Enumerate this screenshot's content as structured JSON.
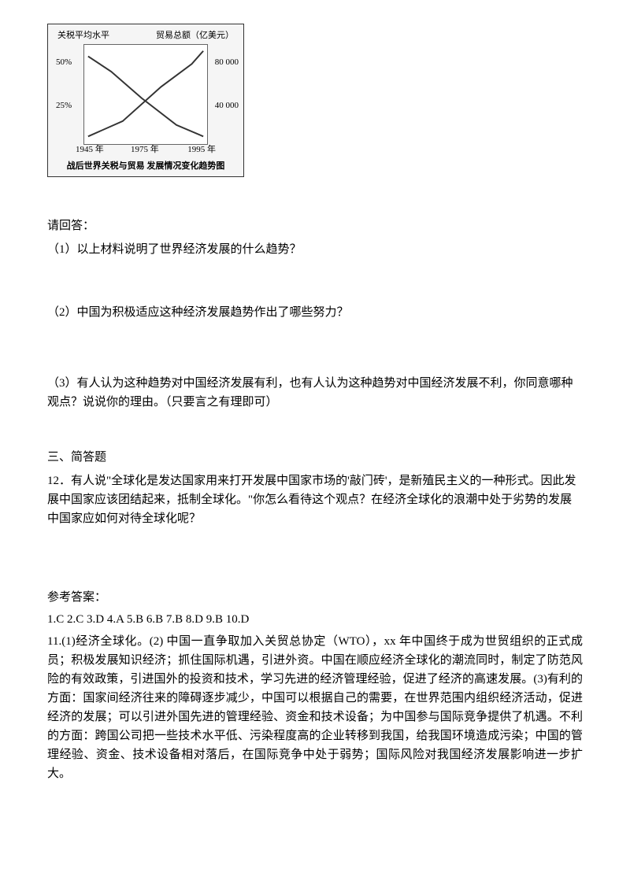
{
  "chart": {
    "left_axis_label": "关税平均水平",
    "right_axis_label": "贸易总额（亿美元）",
    "left_ticks": [
      "50%",
      "25%"
    ],
    "right_ticks": [
      "80 000",
      "40 000"
    ],
    "x_ticks": [
      "1945 年",
      "1975 年",
      "1995 年"
    ],
    "caption": "战后世界关税与贸易 发展情况变化趋势图",
    "line1_points": "5,15 35,35 75,70 120,105 155,120",
    "line2_points": "5,120 50,100 100,55 140,25 155,8",
    "line_color": "#333333",
    "line_width": 2
  },
  "q_intro": "请回答：",
  "q1": "（1）以上材料说明了世界经济发展的什么趋势？",
  "q2": "（2）中国为积极适应这种经济发展趋势作出了哪些努力？",
  "q3": "（3）有人认为这种趋势对中国经济发展有利，也有人认为这种趋势对中国经济发展不利，你同意哪种观点？说说你的理由。（只要言之有理即可）",
  "section3_title": "三、简答题",
  "q12": "12．有人说\"全球化是发达国家用来打开发展中国家市场的'敲门砖'，是新殖民主义的一种形式。因此发展中国家应该团结起来，抵制全球化。\"你怎么看待这个观点？在经济全球化的浪潮中处于劣势的发展中国家应如何对待全球化呢？",
  "answers_title": "参考答案：",
  "answers_choice": "1.C  2.C  3.D  4.A  5.B  6.B  7.B  8.D  9.B  10.D",
  "answer11": "11.(1)经济全球化。(2) 中国一直争取加入关贸总协定（WTO），xx 年中国终于成为世贸组织的正式成员；积极发展知识经济；抓住国际机遇，引进外资。中国在顺应经济全球化的潮流同时，制定了防范风险的有效政策，引进国外的投资和技术，学习先进的经济管理经验，促进了经济的高速发展。(3)有利的方面：国家间经济往来的障碍逐步减少，中国可以根据自己的需要，在世界范围内组织经济活动，促进经济的发展；可以引进外国先进的管理经验、资金和技术设备；为中国参与国际竞争提供了机遇。不利的方面：跨国公司把一些技术水平低、污染程度高的企业转移到我国，给我国环境造成污染；中国的管理经验、资金、技术设备相对落后，在国际竞争中处于弱势；国际风险对我国经济发展影响进一步扩大。"
}
